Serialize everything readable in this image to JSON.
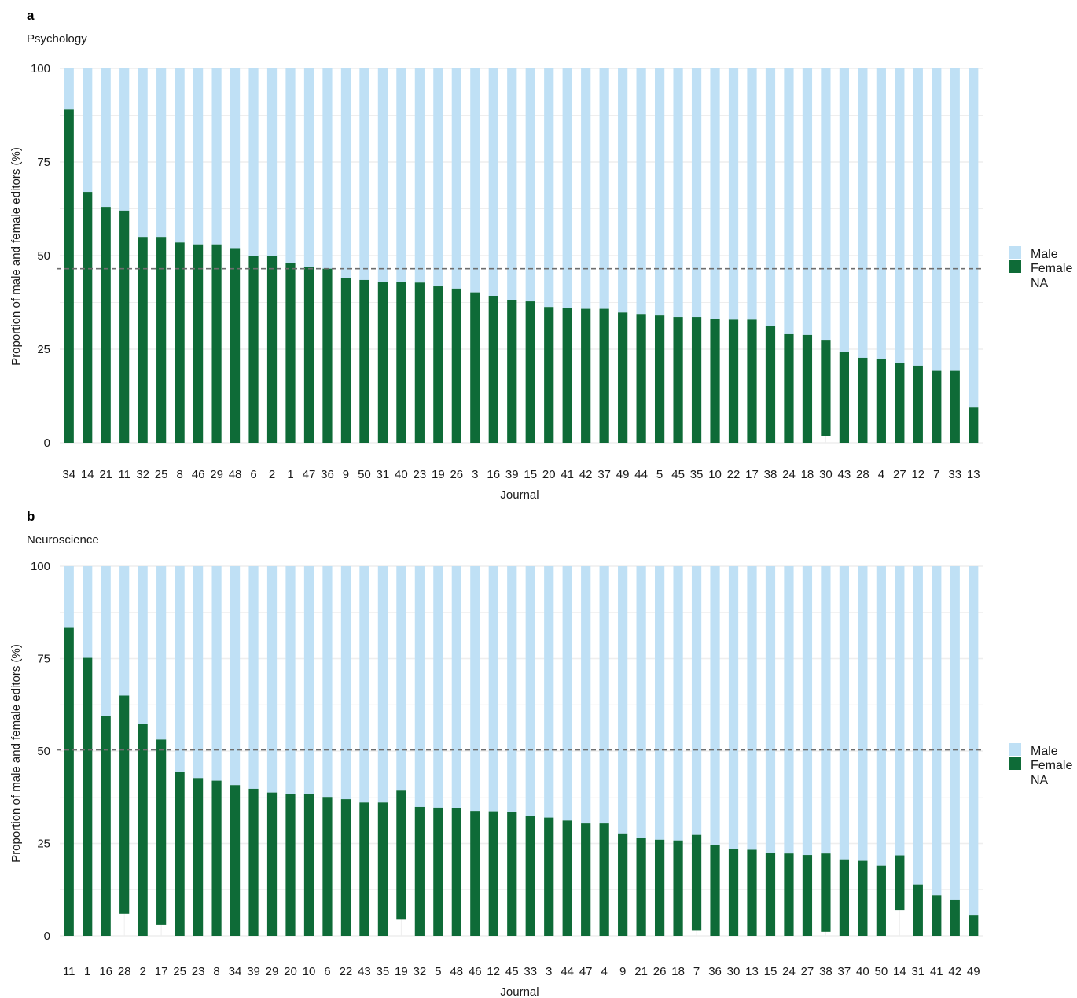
{
  "colors": {
    "male": "#bfe0f5",
    "female": "#0e6b37",
    "grid": "#eeeeee",
    "reference_line": "#6e6e6e"
  },
  "legend": {
    "items": [
      {
        "label": "Male",
        "color": "#bfe0f5"
      },
      {
        "label": "Female",
        "color": "#0e6b37"
      },
      {
        "label": "NA",
        "color": "none"
      }
    ]
  },
  "chart_data": [
    {
      "panel": "a",
      "subtitle": "Psychology",
      "type": "bar",
      "stacked": true,
      "xlabel": "Journal",
      "ylabel": "Proportion of male and female editors (%)",
      "ylim": [
        0,
        100
      ],
      "yticks": [
        0,
        25,
        50,
        75,
        100
      ],
      "reference_line_y": 46.5,
      "categories": [
        "34",
        "14",
        "21",
        "11",
        "32",
        "25",
        "8",
        "46",
        "29",
        "48",
        "6",
        "2",
        "1",
        "47",
        "36",
        "9",
        "50",
        "31",
        "40",
        "23",
        "19",
        "26",
        "3",
        "16",
        "39",
        "15",
        "20",
        "41",
        "42",
        "37",
        "49",
        "44",
        "5",
        "45",
        "35",
        "10",
        "22",
        "17",
        "38",
        "24",
        "18",
        "30",
        "43",
        "28",
        "4",
        "27",
        "12",
        "7",
        "33",
        "13"
      ],
      "series": [
        {
          "name": "Male",
          "values": [
            11,
            33,
            37,
            38,
            45,
            45,
            46.5,
            47,
            47,
            48,
            50,
            50,
            52,
            53,
            53.5,
            56,
            56.5,
            57,
            57,
            57.2,
            58.2,
            58.8,
            59.8,
            60.8,
            61.8,
            62.2,
            63.7,
            63.9,
            64.2,
            64.2,
            65.2,
            65.6,
            66,
            66.4,
            66.4,
            66.9,
            67.1,
            67.1,
            68.7,
            71,
            71.2,
            72.5,
            75.8,
            77.3,
            77.6,
            78.6,
            79.4,
            80.8,
            80.8,
            90.6
          ]
        },
        {
          "name": "Female",
          "values": [
            89,
            67,
            63,
            62,
            55,
            55,
            53.5,
            53,
            53,
            52,
            50,
            50,
            48,
            47,
            46.5,
            44,
            43.5,
            43,
            43,
            42.8,
            41.8,
            41.2,
            40.2,
            39.2,
            38.2,
            37.8,
            36.3,
            36.1,
            35.8,
            35.8,
            34.8,
            34.4,
            34,
            33.6,
            33.6,
            33.1,
            32.9,
            32.9,
            31.3,
            29,
            28.8,
            25.8,
            24.2,
            22.7,
            22.4,
            21.4,
            20.6,
            19.2,
            19.2,
            9.4
          ]
        },
        {
          "name": "NA",
          "values": [
            0,
            0,
            0,
            0,
            0,
            0,
            0,
            0,
            0,
            0,
            0,
            0,
            0,
            0,
            0,
            0,
            0,
            0,
            0,
            0,
            0,
            0,
            0,
            0,
            0,
            0,
            0,
            0,
            0,
            0,
            0,
            0,
            0,
            0,
            0,
            0,
            0,
            0,
            0,
            0,
            0,
            1.7,
            0,
            0,
            0,
            0,
            0,
            0,
            0,
            0
          ]
        }
      ]
    },
    {
      "panel": "b",
      "subtitle": "Neuroscience",
      "type": "bar",
      "stacked": true,
      "xlabel": "Journal",
      "ylabel": "Proportion of male and female editors (%)",
      "ylim": [
        0,
        100
      ],
      "yticks": [
        0,
        25,
        50,
        75,
        100
      ],
      "reference_line_y": 50.3,
      "categories": [
        "11",
        "1",
        "16",
        "28",
        "2",
        "17",
        "25",
        "23",
        "8",
        "34",
        "39",
        "29",
        "20",
        "10",
        "6",
        "22",
        "43",
        "35",
        "19",
        "32",
        "5",
        "48",
        "46",
        "12",
        "45",
        "33",
        "3",
        "44",
        "47",
        "4",
        "9",
        "21",
        "26",
        "18",
        "7",
        "36",
        "30",
        "13",
        "15",
        "24",
        "27",
        "38",
        "37",
        "40",
        "50",
        "14",
        "31",
        "41",
        "42",
        "49"
      ],
      "series": [
        {
          "name": "Male",
          "values": [
            16.5,
            24.8,
            40.6,
            35,
            42.7,
            46.9,
            55.6,
            57.3,
            58,
            59.2,
            60.2,
            61.2,
            61.6,
            61.7,
            62.6,
            63,
            63.9,
            63.9,
            60.7,
            65.1,
            65.3,
            65.5,
            66.2,
            66.3,
            66.5,
            67.6,
            68,
            68.8,
            69.6,
            69.6,
            72.3,
            73.5,
            74,
            74.2,
            72.7,
            75.5,
            76.5,
            76.7,
            77.5,
            77.7,
            78.1,
            77.7,
            79.3,
            79.7,
            81,
            78.2,
            86.1,
            89,
            90.2,
            94.5
          ]
        },
        {
          "name": "Female",
          "values": [
            83.5,
            75.2,
            59.4,
            59,
            57.3,
            50.1,
            44.4,
            42.7,
            42,
            40.8,
            39.8,
            38.8,
            38.4,
            38.3,
            37.4,
            37,
            36.1,
            36.1,
            34.9,
            34.9,
            34.7,
            34.5,
            33.8,
            33.7,
            33.5,
            32.4,
            32,
            31.2,
            30.4,
            30.4,
            27.7,
            26.5,
            26,
            25.8,
            25.9,
            24.5,
            23.5,
            23.3,
            22.5,
            22.3,
            21.9,
            21.2,
            20.7,
            20.3,
            19,
            14.8,
            13.9,
            11,
            9.8,
            5.5
          ]
        },
        {
          "name": "NA",
          "values": [
            0,
            0,
            0,
            6,
            0,
            3,
            0,
            0,
            0,
            0,
            0,
            0,
            0,
            0,
            0,
            0,
            0,
            0,
            4.4,
            0,
            0,
            0,
            0,
            0,
            0,
            0,
            0,
            0,
            0,
            0,
            0,
            0,
            0,
            0,
            1.4,
            0,
            0,
            0,
            0,
            0,
            0,
            1.1,
            0,
            0,
            0,
            7,
            0,
            0,
            0,
            0
          ]
        }
      ]
    }
  ]
}
